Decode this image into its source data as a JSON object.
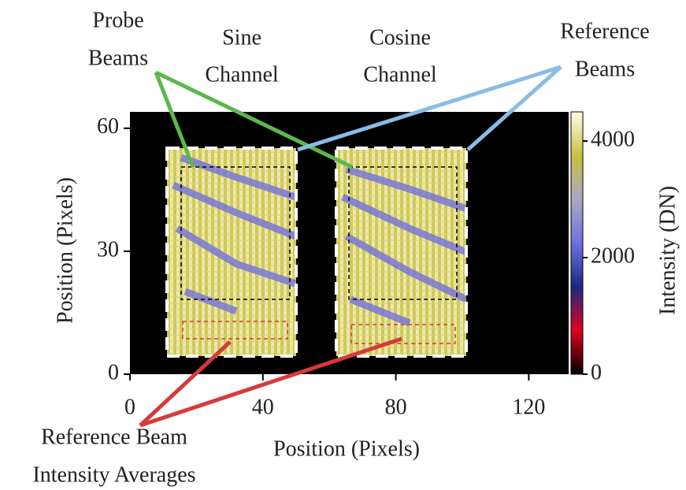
{
  "chart_data": {
    "type": "heatmap",
    "xlabel": "Position (Pixels)",
    "ylabel": "Position (Pixels)",
    "colorbar_label": "Intensity (DN)",
    "xlim": [
      0,
      132
    ],
    "xticks": [
      0,
      40,
      80,
      120
    ],
    "ylim": [
      0,
      64
    ],
    "yticks": [
      0,
      30,
      60
    ],
    "zlim": [
      0,
      4500
    ],
    "zticks": [
      0,
      2000,
      4000
    ],
    "colorscale": [
      "#000000",
      "#e00020",
      "#1a2a80",
      "#7070e0",
      "#a8a8c0",
      "#c8c040",
      "#ffffe8"
    ],
    "annotations": [
      {
        "lines": [
          "Probe",
          "Beams"
        ],
        "color": "#5cb84c"
      },
      {
        "lines": [
          "Sine",
          "Channel"
        ]
      },
      {
        "lines": [
          "Cosine",
          "Channel"
        ]
      },
      {
        "lines": [
          "Reference",
          "Beams"
        ],
        "color": "#88bde6"
      },
      {
        "lines": [
          "Reference Beam",
          "Intensity Averages"
        ],
        "color": "#d63a3a"
      }
    ]
  }
}
